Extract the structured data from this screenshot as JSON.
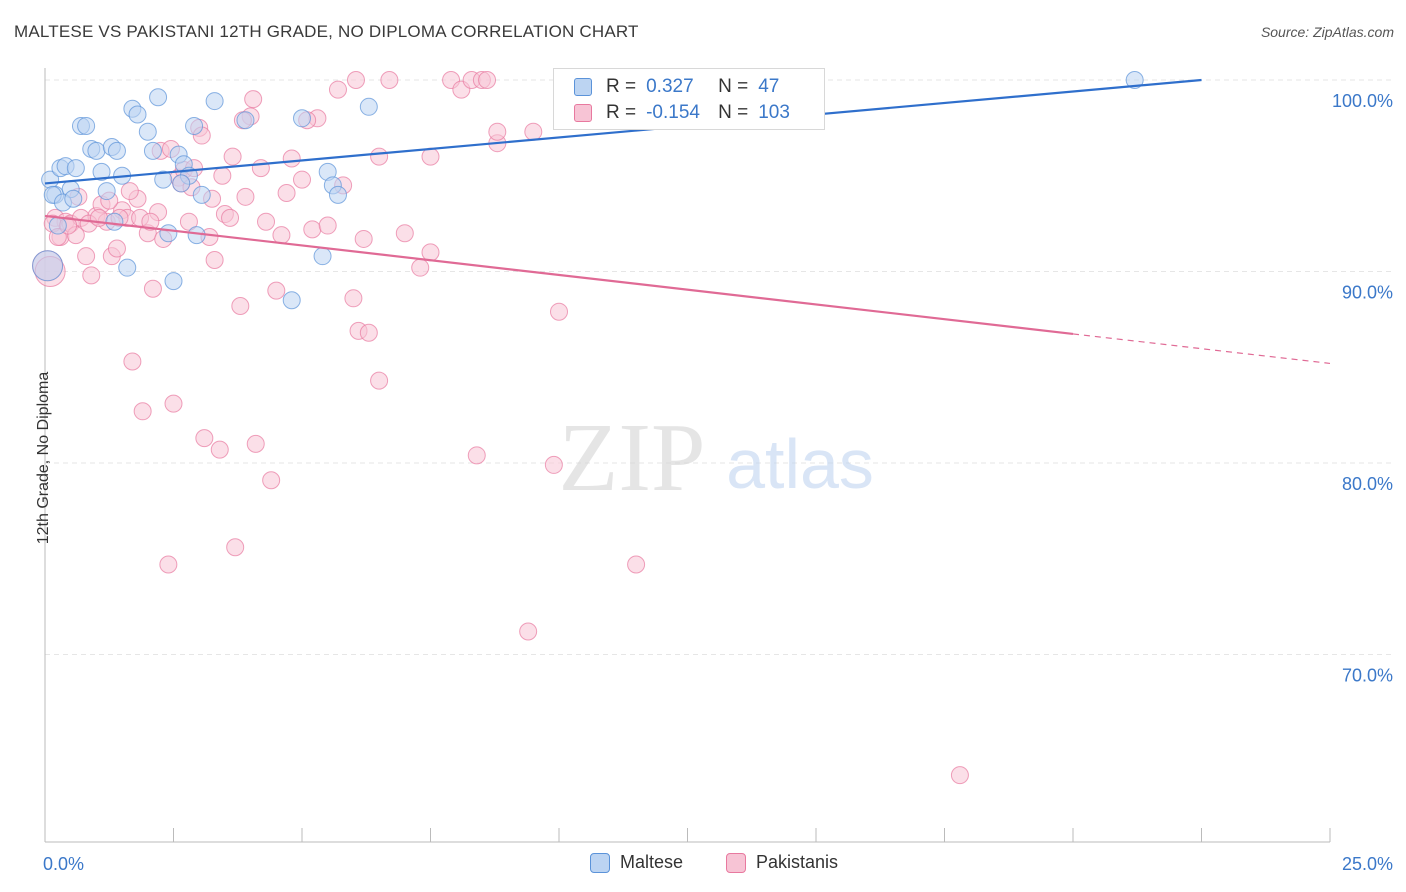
{
  "title": "MALTESE VS PAKISTANI 12TH GRADE, NO DIPLOMA CORRELATION CHART",
  "source": "Source: ZipAtlas.com",
  "watermark": {
    "zip": "ZIP",
    "atlas": "atlas"
  },
  "colors": {
    "blue": "#5b93d9",
    "blue_fill": "#bcd4f2",
    "blue_line": "#2f6fcc",
    "pink": "#e8799f",
    "pink_fill": "#f7c4d5",
    "pink_line": "#e06a95",
    "axis_text": "#3b78c9",
    "grid": "#e6e6e6"
  },
  "legend_top": {
    "rows": [
      {
        "r_label": "R =",
        "r_value": "0.327",
        "n_label": "N =",
        "n_value": "47"
      },
      {
        "r_label": "R =",
        "r_value": "-0.154",
        "n_label": "N =",
        "n_value": "103"
      }
    ]
  },
  "legend_bottom": {
    "items": [
      {
        "label": "Maltese"
      },
      {
        "label": "Pakistanis"
      }
    ]
  },
  "chart_data": {
    "type": "scatter",
    "title": "MALTESE VS PAKISTANI 12TH GRADE, NO DIPLOMA CORRELATION CHART",
    "xlabel": "",
    "ylabel": "12th Grade, No Diploma",
    "xlim": [
      0,
      25
    ],
    "ylim": [
      60.5,
      101.5
    ],
    "x_tick_labels": [
      "0.0%",
      "25.0%"
    ],
    "y_ticks": [
      70,
      80,
      90,
      100
    ],
    "y_tick_labels": [
      "70.0%",
      "80.0%",
      "90.0%",
      "100.0%"
    ],
    "grid": true,
    "legend_position": "top-center",
    "series": [
      {
        "name": "Maltese",
        "color": "#5b93d9",
        "r": 0.327,
        "n": 47,
        "trend": {
          "x0": 0,
          "y0": 94.6,
          "x1": 22.5,
          "y1": 100.0,
          "dash_from": null
        },
        "points": [
          [
            0.1,
            94.8
          ],
          [
            0.2,
            94.0
          ],
          [
            0.3,
            95.4
          ],
          [
            0.4,
            95.5
          ],
          [
            0.5,
            94.3
          ],
          [
            0.6,
            95.4
          ],
          [
            0.7,
            97.6
          ],
          [
            0.8,
            97.6
          ],
          [
            0.9,
            96.4
          ],
          [
            1.0,
            96.3
          ],
          [
            1.1,
            95.2
          ],
          [
            1.2,
            94.2
          ],
          [
            1.3,
            96.5
          ],
          [
            1.4,
            96.3
          ],
          [
            1.5,
            95.0
          ],
          [
            1.6,
            90.2
          ],
          [
            1.7,
            98.5
          ],
          [
            1.8,
            98.2
          ],
          [
            2.0,
            97.3
          ],
          [
            2.1,
            96.3
          ],
          [
            2.2,
            99.1
          ],
          [
            2.3,
            94.8
          ],
          [
            2.4,
            92.0
          ],
          [
            2.5,
            89.5
          ],
          [
            2.6,
            96.1
          ],
          [
            2.7,
            95.6
          ],
          [
            2.8,
            95.0
          ],
          [
            2.9,
            97.6
          ],
          [
            3.3,
            98.9
          ],
          [
            3.9,
            97.9
          ],
          [
            4.8,
            88.5
          ],
          [
            5.0,
            98.0
          ],
          [
            5.4,
            90.8
          ],
          [
            5.5,
            95.2
          ],
          [
            5.6,
            94.5
          ],
          [
            6.3,
            98.6
          ],
          [
            0.15,
            94.0
          ],
          [
            0.35,
            93.6
          ],
          [
            0.55,
            93.8
          ],
          [
            0.25,
            92.4
          ],
          [
            1.35,
            92.6
          ],
          [
            2.95,
            91.9
          ],
          [
            3.05,
            94.0
          ],
          [
            2.65,
            94.6
          ],
          [
            5.7,
            94.0
          ],
          [
            21.2,
            100.0
          ],
          [
            0.05,
            90.3
          ]
        ]
      },
      {
        "name": "Pakistanis",
        "color": "#e8799f",
        "r": -0.154,
        "n": 103,
        "trend": {
          "x0": 0,
          "y0": 92.9,
          "x1": 25,
          "y1": 85.2,
          "dash_from": 20.0
        },
        "points": [
          [
            0.05,
            90.3
          ],
          [
            0.1,
            90.0
          ],
          [
            0.2,
            92.8
          ],
          [
            0.3,
            91.8
          ],
          [
            0.4,
            92.6
          ],
          [
            0.5,
            92.5
          ],
          [
            0.6,
            91.9
          ],
          [
            0.7,
            92.8
          ],
          [
            0.8,
            90.8
          ],
          [
            0.9,
            89.8
          ],
          [
            1.0,
            92.9
          ],
          [
            1.1,
            93.5
          ],
          [
            1.2,
            92.6
          ],
          [
            1.3,
            90.8
          ],
          [
            1.4,
            91.2
          ],
          [
            1.5,
            93.2
          ],
          [
            1.6,
            92.8
          ],
          [
            1.7,
            85.3
          ],
          [
            1.8,
            93.8
          ],
          [
            1.9,
            82.7
          ],
          [
            2.0,
            92.0
          ],
          [
            2.1,
            89.1
          ],
          [
            2.2,
            93.1
          ],
          [
            2.3,
            91.7
          ],
          [
            2.4,
            74.7
          ],
          [
            2.5,
            83.1
          ],
          [
            2.6,
            94.9
          ],
          [
            2.7,
            95.3
          ],
          [
            2.8,
            92.6
          ],
          [
            2.9,
            95.4
          ],
          [
            3.0,
            97.5
          ],
          [
            3.1,
            81.3
          ],
          [
            3.2,
            91.8
          ],
          [
            3.3,
            90.6
          ],
          [
            3.4,
            80.7
          ],
          [
            3.5,
            93.0
          ],
          [
            3.6,
            92.8
          ],
          [
            3.7,
            75.6
          ],
          [
            3.8,
            88.2
          ],
          [
            3.9,
            93.9
          ],
          [
            4.0,
            98.1
          ],
          [
            4.1,
            81.0
          ],
          [
            4.2,
            95.4
          ],
          [
            4.3,
            92.6
          ],
          [
            4.4,
            79.1
          ],
          [
            4.5,
            89.0
          ],
          [
            4.6,
            91.9
          ],
          [
            4.7,
            94.1
          ],
          [
            4.8,
            95.9
          ],
          [
            5.0,
            94.8
          ],
          [
            5.2,
            92.2
          ],
          [
            5.3,
            98.0
          ],
          [
            5.5,
            92.4
          ],
          [
            5.8,
            94.5
          ],
          [
            6.0,
            88.6
          ],
          [
            6.1,
            86.9
          ],
          [
            6.2,
            91.7
          ],
          [
            6.3,
            86.8
          ],
          [
            6.5,
            84.3
          ],
          [
            6.7,
            100.0
          ],
          [
            7.0,
            92.0
          ],
          [
            7.3,
            90.2
          ],
          [
            7.5,
            91.0
          ],
          [
            7.9,
            100.0
          ],
          [
            8.1,
            99.5
          ],
          [
            8.3,
            100.0
          ],
          [
            8.4,
            80.4
          ],
          [
            8.5,
            100.0
          ],
          [
            8.6,
            100.0
          ],
          [
            8.8,
            96.7
          ],
          [
            9.4,
            71.2
          ],
          [
            9.5,
            97.3
          ],
          [
            9.9,
            79.9
          ],
          [
            10.0,
            87.9
          ],
          [
            11.5,
            74.7
          ],
          [
            17.8,
            63.7
          ],
          [
            0.15,
            92.5
          ],
          [
            0.25,
            91.8
          ],
          [
            0.45,
            92.4
          ],
          [
            0.65,
            93.9
          ],
          [
            0.85,
            92.5
          ],
          [
            1.05,
            92.8
          ],
          [
            1.25,
            93.7
          ],
          [
            1.45,
            92.8
          ],
          [
            1.65,
            94.2
          ],
          [
            1.85,
            92.8
          ],
          [
            2.05,
            92.6
          ],
          [
            2.25,
            96.3
          ],
          [
            2.45,
            96.4
          ],
          [
            2.65,
            94.6
          ],
          [
            2.85,
            94.4
          ],
          [
            3.05,
            97.1
          ],
          [
            3.25,
            93.8
          ],
          [
            3.45,
            95.0
          ],
          [
            3.65,
            96.0
          ],
          [
            3.85,
            97.9
          ],
          [
            4.05,
            99.0
          ],
          [
            5.1,
            97.9
          ],
          [
            5.7,
            99.5
          ],
          [
            6.05,
            100.0
          ],
          [
            6.5,
            96.0
          ],
          [
            7.5,
            96.0
          ],
          [
            8.8,
            97.3
          ]
        ]
      }
    ]
  }
}
